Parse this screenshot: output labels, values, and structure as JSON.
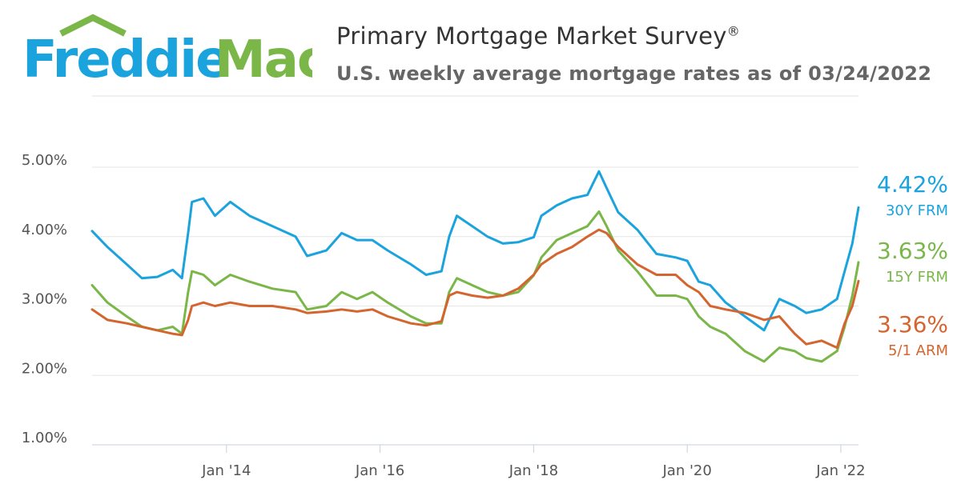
{
  "brand": {
    "name_part1": "Freddie",
    "name_part2": "Mac",
    "colors": {
      "blue": "#1BA3DD",
      "green": "#7AB648"
    }
  },
  "header": {
    "title": "Primary Mortgage Market Survey",
    "title_mark": "®",
    "subtitle": "U.S. weekly average mortgage rates as of 03/24/2022"
  },
  "chart_data": {
    "type": "line",
    "title": "Primary Mortgage Market Survey",
    "subtitle": "U.S. weekly average mortgage rates as of 03/24/2022",
    "xlabel": "",
    "ylabel": "",
    "xlim": [
      2012.25,
      2022.23
    ],
    "ylim": [
      1.0,
      5.0
    ],
    "y_ticks": [
      1.0,
      2.0,
      3.0,
      4.0,
      5.0
    ],
    "y_tick_labels": [
      "1.00%",
      "2.00%",
      "3.00%",
      "4.00%",
      "5.00%"
    ],
    "x_ticks": [
      2014.0,
      2016.0,
      2018.0,
      2020.0,
      2022.0
    ],
    "x_tick_labels": [
      "Jan '14",
      "Jan '16",
      "Jan '18",
      "Jan '20",
      "Jan '22"
    ],
    "grid": "horizontal",
    "series": [
      {
        "name": "30Y FRM",
        "latest_label": "4.42%",
        "color": "#1BA3DD",
        "points": [
          [
            2012.25,
            4.08
          ],
          [
            2012.45,
            3.85
          ],
          [
            2012.7,
            3.6
          ],
          [
            2012.9,
            3.4
          ],
          [
            2013.1,
            3.42
          ],
          [
            2013.3,
            3.52
          ],
          [
            2013.42,
            3.4
          ],
          [
            2013.5,
            4.05
          ],
          [
            2013.55,
            4.5
          ],
          [
            2013.7,
            4.55
          ],
          [
            2013.85,
            4.3
          ],
          [
            2014.05,
            4.5
          ],
          [
            2014.3,
            4.3
          ],
          [
            2014.6,
            4.15
          ],
          [
            2014.9,
            4.0
          ],
          [
            2015.05,
            3.72
          ],
          [
            2015.3,
            3.8
          ],
          [
            2015.5,
            4.05
          ],
          [
            2015.7,
            3.95
          ],
          [
            2015.9,
            3.95
          ],
          [
            2016.1,
            3.8
          ],
          [
            2016.4,
            3.6
          ],
          [
            2016.6,
            3.45
          ],
          [
            2016.8,
            3.5
          ],
          [
            2016.9,
            4.0
          ],
          [
            2017.0,
            4.3
          ],
          [
            2017.2,
            4.15
          ],
          [
            2017.4,
            4.0
          ],
          [
            2017.6,
            3.9
          ],
          [
            2017.8,
            3.92
          ],
          [
            2018.0,
            3.99
          ],
          [
            2018.1,
            4.3
          ],
          [
            2018.3,
            4.45
          ],
          [
            2018.5,
            4.55
          ],
          [
            2018.7,
            4.6
          ],
          [
            2018.85,
            4.94
          ],
          [
            2018.95,
            4.7
          ],
          [
            2019.1,
            4.35
          ],
          [
            2019.35,
            4.1
          ],
          [
            2019.6,
            3.75
          ],
          [
            2019.85,
            3.7
          ],
          [
            2020.0,
            3.65
          ],
          [
            2020.15,
            3.35
          ],
          [
            2020.3,
            3.3
          ],
          [
            2020.5,
            3.05
          ],
          [
            2020.75,
            2.85
          ],
          [
            2021.0,
            2.65
          ],
          [
            2021.2,
            3.1
          ],
          [
            2021.4,
            3.0
          ],
          [
            2021.55,
            2.9
          ],
          [
            2021.75,
            2.95
          ],
          [
            2021.95,
            3.1
          ],
          [
            2022.05,
            3.5
          ],
          [
            2022.15,
            3.9
          ],
          [
            2022.23,
            4.42
          ]
        ]
      },
      {
        "name": "15Y FRM",
        "latest_label": "3.63%",
        "color": "#7AB648",
        "points": [
          [
            2012.25,
            3.3
          ],
          [
            2012.45,
            3.05
          ],
          [
            2012.7,
            2.85
          ],
          [
            2012.9,
            2.7
          ],
          [
            2013.1,
            2.65
          ],
          [
            2013.3,
            2.7
          ],
          [
            2013.42,
            2.6
          ],
          [
            2013.5,
            3.2
          ],
          [
            2013.55,
            3.5
          ],
          [
            2013.7,
            3.45
          ],
          [
            2013.85,
            3.3
          ],
          [
            2014.05,
            3.45
          ],
          [
            2014.3,
            3.35
          ],
          [
            2014.6,
            3.25
          ],
          [
            2014.9,
            3.2
          ],
          [
            2015.05,
            2.95
          ],
          [
            2015.3,
            3.0
          ],
          [
            2015.5,
            3.2
          ],
          [
            2015.7,
            3.1
          ],
          [
            2015.9,
            3.2
          ],
          [
            2016.1,
            3.05
          ],
          [
            2016.4,
            2.85
          ],
          [
            2016.6,
            2.75
          ],
          [
            2016.8,
            2.75
          ],
          [
            2016.9,
            3.2
          ],
          [
            2017.0,
            3.4
          ],
          [
            2017.2,
            3.3
          ],
          [
            2017.4,
            3.2
          ],
          [
            2017.6,
            3.15
          ],
          [
            2017.8,
            3.2
          ],
          [
            2018.0,
            3.44
          ],
          [
            2018.1,
            3.7
          ],
          [
            2018.3,
            3.95
          ],
          [
            2018.5,
            4.05
          ],
          [
            2018.7,
            4.15
          ],
          [
            2018.85,
            4.36
          ],
          [
            2018.95,
            4.15
          ],
          [
            2019.1,
            3.8
          ],
          [
            2019.35,
            3.5
          ],
          [
            2019.6,
            3.15
          ],
          [
            2019.85,
            3.15
          ],
          [
            2020.0,
            3.1
          ],
          [
            2020.15,
            2.85
          ],
          [
            2020.3,
            2.7
          ],
          [
            2020.5,
            2.6
          ],
          [
            2020.75,
            2.35
          ],
          [
            2021.0,
            2.2
          ],
          [
            2021.2,
            2.4
          ],
          [
            2021.4,
            2.35
          ],
          [
            2021.55,
            2.25
          ],
          [
            2021.75,
            2.2
          ],
          [
            2021.95,
            2.35
          ],
          [
            2022.05,
            2.7
          ],
          [
            2022.15,
            3.15
          ],
          [
            2022.23,
            3.63
          ]
        ]
      },
      {
        "name": "5/1 ARM",
        "latest_label": "3.36%",
        "color": "#D4652F",
        "points": [
          [
            2012.25,
            2.95
          ],
          [
            2012.45,
            2.8
          ],
          [
            2012.7,
            2.75
          ],
          [
            2012.9,
            2.7
          ],
          [
            2013.1,
            2.65
          ],
          [
            2013.3,
            2.6
          ],
          [
            2013.42,
            2.58
          ],
          [
            2013.5,
            2.8
          ],
          [
            2013.55,
            3.0
          ],
          [
            2013.7,
            3.05
          ],
          [
            2013.85,
            3.0
          ],
          [
            2014.05,
            3.05
          ],
          [
            2014.3,
            3.0
          ],
          [
            2014.6,
            3.0
          ],
          [
            2014.9,
            2.95
          ],
          [
            2015.05,
            2.9
          ],
          [
            2015.3,
            2.92
          ],
          [
            2015.5,
            2.95
          ],
          [
            2015.7,
            2.92
          ],
          [
            2015.9,
            2.95
          ],
          [
            2016.1,
            2.85
          ],
          [
            2016.4,
            2.75
          ],
          [
            2016.6,
            2.72
          ],
          [
            2016.8,
            2.78
          ],
          [
            2016.9,
            3.15
          ],
          [
            2017.0,
            3.2
          ],
          [
            2017.2,
            3.15
          ],
          [
            2017.4,
            3.12
          ],
          [
            2017.6,
            3.15
          ],
          [
            2017.8,
            3.25
          ],
          [
            2018.0,
            3.45
          ],
          [
            2018.1,
            3.6
          ],
          [
            2018.3,
            3.75
          ],
          [
            2018.5,
            3.85
          ],
          [
            2018.7,
            4.0
          ],
          [
            2018.85,
            4.1
          ],
          [
            2018.95,
            4.05
          ],
          [
            2019.1,
            3.85
          ],
          [
            2019.35,
            3.6
          ],
          [
            2019.6,
            3.45
          ],
          [
            2019.85,
            3.45
          ],
          [
            2020.0,
            3.3
          ],
          [
            2020.15,
            3.2
          ],
          [
            2020.3,
            3.0
          ],
          [
            2020.5,
            2.95
          ],
          [
            2020.75,
            2.9
          ],
          [
            2021.0,
            2.8
          ],
          [
            2021.2,
            2.85
          ],
          [
            2021.4,
            2.6
          ],
          [
            2021.55,
            2.45
          ],
          [
            2021.75,
            2.5
          ],
          [
            2021.95,
            2.4
          ],
          [
            2022.05,
            2.75
          ],
          [
            2022.15,
            3.0
          ],
          [
            2022.23,
            3.36
          ]
        ]
      }
    ]
  }
}
